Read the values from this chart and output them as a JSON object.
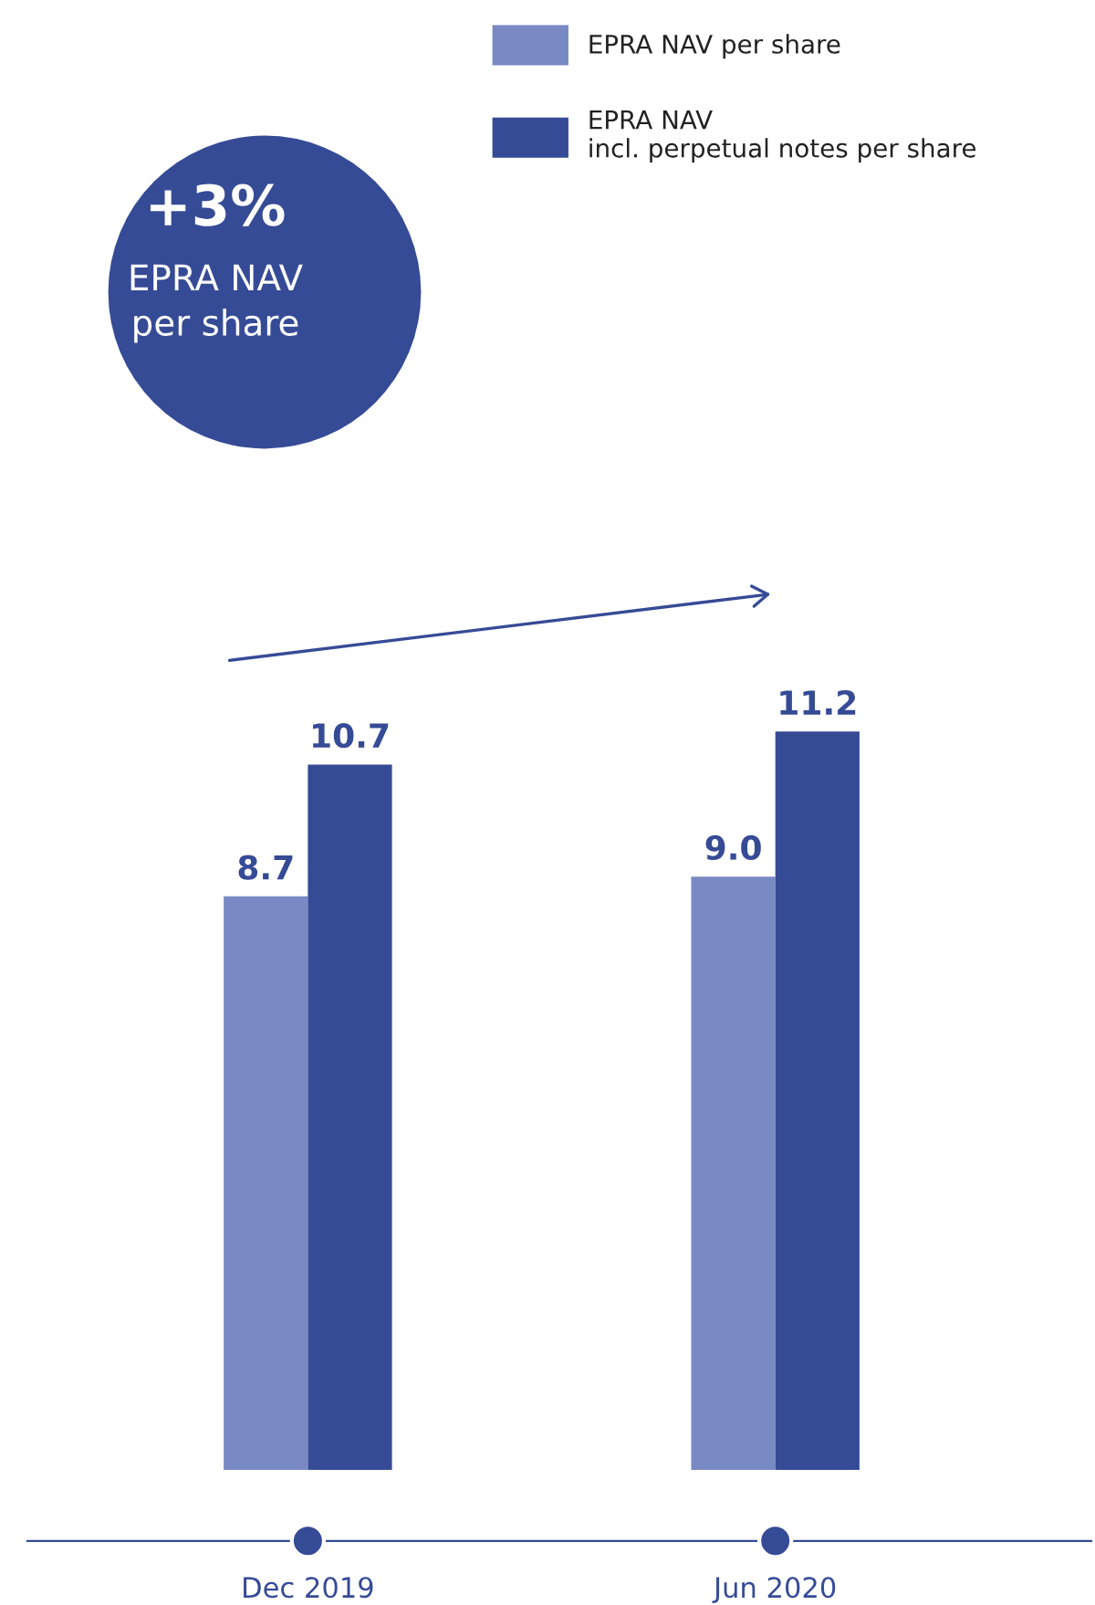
{
  "chart_data": {
    "type": "bar",
    "categories": [
      "Dec 2019",
      "Jun 2020"
    ],
    "series": [
      {
        "name": "EPRA NAV per share",
        "color": "#7889c3",
        "values": [
          8.7,
          9.0
        ],
        "value_labels": [
          "8.7",
          "9.0"
        ]
      },
      {
        "name": "EPRA NAV\nincl. perpetual notes per share",
        "color": "#364b96",
        "values": [
          10.7,
          11.2
        ],
        "value_labels": [
          "10.7",
          "11.2"
        ]
      }
    ],
    "legend": "top right",
    "annotations": [
      "+3%",
      "EPRA NAV\nper share"
    ]
  }
}
